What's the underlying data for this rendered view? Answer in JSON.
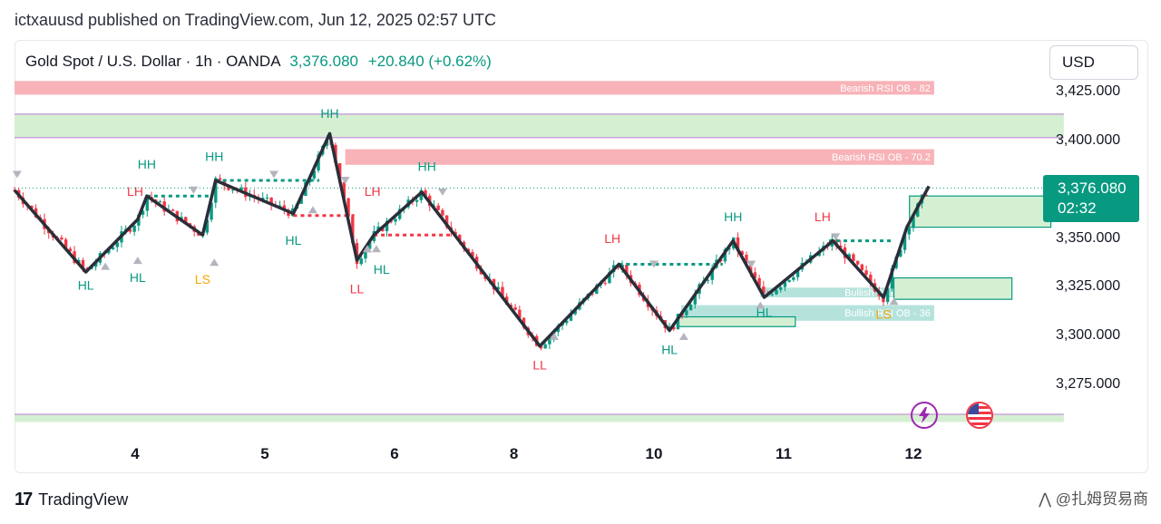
{
  "publish_line": "ictxauusd published on TradingView.com, Jun 12, 2025 02:57 UTC",
  "header": {
    "symbol": "Gold Spot / U.S. Dollar · 1h · OANDA",
    "price": "3,376.080",
    "change": "+20.840 (+0.62%)"
  },
  "currency_button": "USD",
  "price_badge": {
    "price": "3,376.080",
    "countdown": "02:32"
  },
  "brand": "TradingView",
  "watermark": "⋀ @扎姆贸易商",
  "colors": {
    "up": "#089981",
    "down": "#f23645",
    "zigzag": "#2a2e39"
  },
  "icons": [
    "lightning-icon",
    "us-flag-icon",
    "tradingview-logo-icon"
  ],
  "chart_data": {
    "type": "candlestick",
    "title": "",
    "xlabel": "",
    "ylabel": "",
    "ylim": [
      3255,
      3440
    ],
    "y_ticks": [
      "3,425.000",
      "3,400.000",
      "3,350.000",
      "3,325.000",
      "3,300.000",
      "3,275.000"
    ],
    "y_tick_values": [
      3425,
      3400,
      3350,
      3325,
      3300,
      3275
    ],
    "x_ticks": [
      "4",
      "5",
      "6",
      "8",
      "10",
      "11",
      "12"
    ],
    "x_tick_positions": [
      9.3,
      19.3,
      29.3,
      38.5,
      49.3,
      59.3,
      69.3
    ],
    "current_price": 3376.08,
    "zigzag": [
      {
        "t": 0,
        "p": 3375
      },
      {
        "t": 5.5,
        "p": 3333
      },
      {
        "t": 9.5,
        "p": 3360
      },
      {
        "t": 10.2,
        "p": 3372
      },
      {
        "t": 14.5,
        "p": 3352
      },
      {
        "t": 15.5,
        "p": 3380
      },
      {
        "t": 21.5,
        "p": 3363
      },
      {
        "t": 24.3,
        "p": 3404
      },
      {
        "t": 26.4,
        "p": 3339
      },
      {
        "t": 27.7,
        "p": 3352
      },
      {
        "t": 31.4,
        "p": 3374
      },
      {
        "t": 40.5,
        "p": 3295
      },
      {
        "t": 46.6,
        "p": 3337
      },
      {
        "t": 50.5,
        "p": 3303
      },
      {
        "t": 55.4,
        "p": 3349
      },
      {
        "t": 57.8,
        "p": 3320
      },
      {
        "t": 63.1,
        "p": 3349
      },
      {
        "t": 67.0,
        "p": 3320
      },
      {
        "t": 68.8,
        "p": 3356
      },
      {
        "t": 70.5,
        "p": 3377
      }
    ],
    "labels": [
      {
        "text": "HL",
        "t": 5.5,
        "p": 3324,
        "color": "#089981"
      },
      {
        "text": "HH",
        "t": 10.2,
        "p": 3386,
        "color": "#089981"
      },
      {
        "text": "LH",
        "t": 9.3,
        "p": 3372,
        "color": "#f23645"
      },
      {
        "text": "HL",
        "t": 9.5,
        "p": 3328,
        "color": "#089981"
      },
      {
        "text": "HH",
        "t": 15.4,
        "p": 3390,
        "color": "#089981"
      },
      {
        "text": "LS",
        "t": 14.5,
        "p": 3327,
        "color": "#f7a600"
      },
      {
        "text": "HL",
        "t": 21.5,
        "p": 3347,
        "color": "#089981"
      },
      {
        "text": "HH",
        "t": 24.3,
        "p": 3412,
        "color": "#089981"
      },
      {
        "text": "LH",
        "t": 27.6,
        "p": 3372,
        "color": "#f23645"
      },
      {
        "text": "LL",
        "t": 26.4,
        "p": 3322,
        "color": "#f23645"
      },
      {
        "text": "HL",
        "t": 28.3,
        "p": 3332,
        "color": "#089981"
      },
      {
        "text": "HH",
        "t": 31.8,
        "p": 3385,
        "color": "#089981"
      },
      {
        "text": "LL",
        "t": 40.5,
        "p": 3283,
        "color": "#f23645"
      },
      {
        "text": "LH",
        "t": 46.1,
        "p": 3348,
        "color": "#f23645"
      },
      {
        "text": "HL",
        "t": 50.5,
        "p": 3291,
        "color": "#089981"
      },
      {
        "text": "HH",
        "t": 55.4,
        "p": 3359,
        "color": "#089981"
      },
      {
        "text": "HL",
        "t": 57.8,
        "p": 3310,
        "color": "#089981"
      },
      {
        "text": "LH",
        "t": 62.3,
        "p": 3359,
        "color": "#f23645"
      },
      {
        "text": "LS",
        "t": 67.0,
        "p": 3309,
        "color": "#f7a600"
      }
    ],
    "zones": [
      {
        "name": "Bearish RSI OB - 82",
        "from_t": 0,
        "to_t": 70.9,
        "low": 3424,
        "high": 3431,
        "color": "#f7b3b8"
      },
      {
        "name": "",
        "from_t": 0,
        "to_t": 80.9,
        "low": 3402,
        "high": 3414,
        "color": "#d5efd2"
      },
      {
        "name": "Bearish RSI OB - 70.2",
        "from_t": 25.5,
        "to_t": 70.9,
        "low": 3388,
        "high": 3396,
        "color": "#f7b3b8"
      },
      {
        "name": "Bullish RSI OB - 46",
        "from_t": 57.5,
        "to_t": 70.9,
        "low": 3320,
        "high": 3325,
        "color": "#b5e3dc"
      },
      {
        "name": "Bullish RSI OB - 36",
        "from_t": 51.4,
        "to_t": 70.9,
        "low": 3308,
        "high": 3316,
        "color": "#b5e3dc"
      },
      {
        "name": "",
        "from_t": 0,
        "to_t": 80.9,
        "low": 3256,
        "high": 3260,
        "color": "#d5efd2"
      }
    ]
  }
}
